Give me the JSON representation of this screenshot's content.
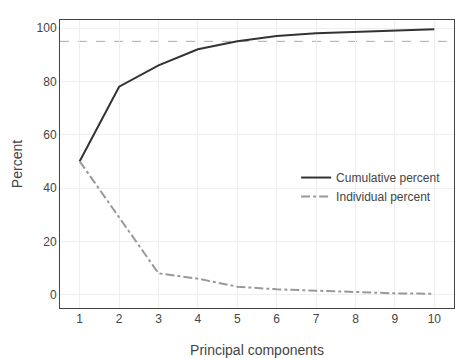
{
  "chart_data": {
    "type": "line",
    "x": [
      1,
      2,
      3,
      4,
      5,
      6,
      7,
      8,
      9,
      10
    ],
    "series": [
      {
        "name": "Cumulative percent",
        "color": "#333333",
        "line_style": "solid",
        "values": [
          50,
          78,
          86,
          92,
          95,
          97,
          98,
          98.5,
          99,
          99.5
        ]
      },
      {
        "name": "Individual percent",
        "color": "#999999",
        "line_style": "dashdot",
        "values": [
          50,
          29,
          8,
          6,
          3,
          2,
          1.5,
          1,
          0.5,
          0.3
        ]
      }
    ],
    "reference_line": {
      "y": 95,
      "color": "#aaaaaa",
      "line_style": "dashed"
    },
    "xlim": [
      0.5,
      10.5
    ],
    "ylim": [
      -5,
      103
    ],
    "xticks": [
      1,
      2,
      3,
      4,
      5,
      6,
      7,
      8,
      9,
      10
    ],
    "yticks": [
      0,
      20,
      40,
      60,
      80,
      100
    ],
    "xlabel": "Principal components",
    "ylabel": "Percent",
    "grid": true,
    "legend": "right"
  }
}
